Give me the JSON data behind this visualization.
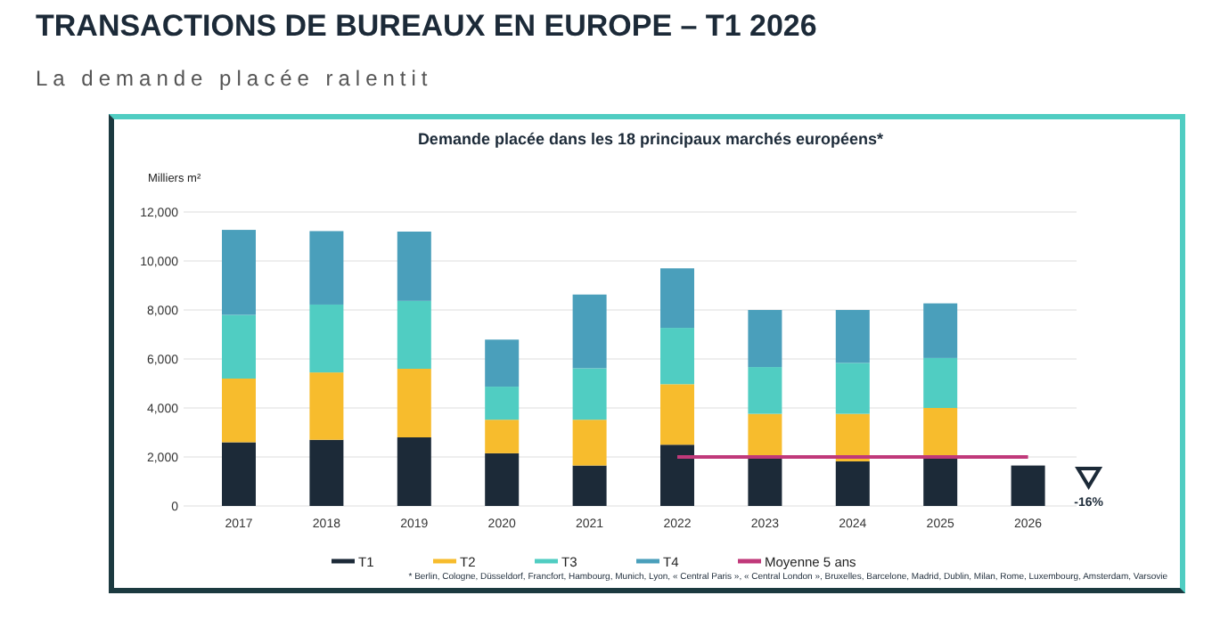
{
  "chart_data": {
    "type": "bar",
    "title": "TRANSACTIONS DE BUREAUX EN EUROPE – T1 2026",
    "subtitle": "La demande placée ralentit",
    "ylabel": "Milliers m²",
    "categories": [
      "2017",
      "2018",
      "2019",
      "2020",
      "2021",
      "2022",
      "2023",
      "2024",
      "2025",
      "2026"
    ],
    "stacked": true,
    "series": [
      {
        "name": "T1",
        "color": "#1c2a38",
        "values": [
          2600,
          2700,
          2800,
          2150,
          1650,
          2500,
          1950,
          1820,
          2000,
          1650
        ]
      },
      {
        "name": "T2",
        "color": "#f7bc2d",
        "values": [
          2600,
          2750,
          2800,
          1370,
          1870,
          2470,
          1810,
          1940,
          2000,
          null
        ]
      },
      {
        "name": "T3",
        "color": "#50cdc2",
        "values": [
          2600,
          2770,
          2770,
          1350,
          2100,
          2300,
          1910,
          2080,
          2040,
          null
        ]
      },
      {
        "name": "T4",
        "color": "#4a9fbb",
        "values": [
          3470,
          3000,
          2830,
          1920,
          3010,
          2430,
          2330,
          2160,
          2230,
          null
        ]
      },
      {
        "name": "Moyenne 5 ans",
        "type": "line",
        "color": "#c0397a",
        "values": [
          null,
          null,
          null,
          null,
          null,
          2000,
          2000,
          2000,
          2000,
          2000
        ]
      }
    ],
    "ylim": [
      0,
      12000
    ],
    "yticks": [
      {
        "value": 0,
        "label": "0"
      },
      {
        "value": 2000,
        "label": "2,000"
      },
      {
        "value": 4000,
        "label": "4,000"
      },
      {
        "value": 6000,
        "label": "6,000"
      },
      {
        "value": 8000,
        "label": "8,000"
      },
      {
        "value": 10000,
        "label": "10,000"
      },
      {
        "value": 12000,
        "label": "12,000"
      }
    ],
    "grid": "y",
    "legend": "bottom",
    "annotations": [
      "Demande placée dans les 18 principaux marchés européens*",
      "-16%",
      "* Berlin, Cologne, Düsseldorf, Francfort, Hambourg, Munich,  Lyon, « Central Paris », « Central London », Bruxelles, Barcelone, Madrid, Dublin, Milan, Rome, Luxembourg, Amsterdam, Varsovie"
    ]
  }
}
